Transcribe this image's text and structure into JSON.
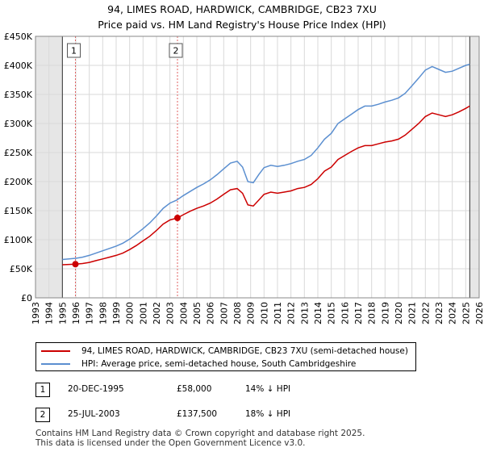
{
  "title_line1": "94, LIMES ROAD, HARDWICK, CAMBRIDGE, CB23 7XU",
  "title_line2": "Price paid vs. HM Land Registry's House Price Index (HPI)",
  "chart_data": {
    "type": "line",
    "xlim": [
      1993,
      2026
    ],
    "ylim": [
      0,
      450000
    ],
    "x_ticks": [
      "1993",
      "1994",
      "1995",
      "1996",
      "1997",
      "1998",
      "1999",
      "2000",
      "2001",
      "2002",
      "2003",
      "2004",
      "2005",
      "2006",
      "2007",
      "2008",
      "2009",
      "2010",
      "2011",
      "2012",
      "2013",
      "2014",
      "2015",
      "2016",
      "2017",
      "2018",
      "2019",
      "2020",
      "2021",
      "2022",
      "2023",
      "2024",
      "2025",
      "2026"
    ],
    "y_ticks": [
      {
        "value": 0,
        "label": "£0"
      },
      {
        "value": 50000,
        "label": "£50K"
      },
      {
        "value": 100000,
        "label": "£100K"
      },
      {
        "value": 150000,
        "label": "£150K"
      },
      {
        "value": 200000,
        "label": "£200K"
      },
      {
        "value": 250000,
        "label": "£250K"
      },
      {
        "value": 300000,
        "label": "£300K"
      },
      {
        "value": 350000,
        "label": "£350K"
      },
      {
        "value": 400000,
        "label": "£400K"
      },
      {
        "value": 450000,
        "label": "£450K"
      }
    ],
    "data_range": [
      1995,
      2025.3
    ],
    "series": [
      {
        "name": "94, LIMES ROAD, HARDWICK, CAMBRIDGE, CB23 7XU (semi-detached house)",
        "color": "#cc0000",
        "x": [
          1995.0,
          1995.5,
          1995.97,
          1996.5,
          1997.0,
          1997.5,
          1998.0,
          1998.5,
          1999.0,
          1999.5,
          2000.0,
          2000.5,
          2001.0,
          2001.5,
          2002.0,
          2002.5,
          2003.0,
          2003.56,
          2004.0,
          2004.5,
          2005.0,
          2005.5,
          2006.0,
          2006.5,
          2007.0,
          2007.5,
          2008.0,
          2008.4,
          2008.8,
          2009.2,
          2009.6,
          2010.0,
          2010.5,
          2011.0,
          2011.5,
          2012.0,
          2012.5,
          2013.0,
          2013.5,
          2014.0,
          2014.5,
          2015.0,
          2015.5,
          2016.0,
          2016.5,
          2017.0,
          2017.5,
          2018.0,
          2018.5,
          2019.0,
          2019.5,
          2020.0,
          2020.5,
          2021.0,
          2021.5,
          2022.0,
          2022.5,
          2023.0,
          2023.5,
          2024.0,
          2024.5,
          2025.0,
          2025.3
        ],
        "values": [
          57000,
          57500,
          58000,
          59000,
          61000,
          64000,
          67000,
          70000,
          73000,
          77000,
          83000,
          90000,
          98000,
          106000,
          116000,
          127000,
          134000,
          137500,
          143000,
          149000,
          154000,
          158000,
          163000,
          170000,
          178000,
          186000,
          188000,
          180000,
          160000,
          158000,
          168000,
          178000,
          182000,
          180000,
          182000,
          184000,
          188000,
          190000,
          195000,
          205000,
          218000,
          225000,
          238000,
          245000,
          252000,
          258000,
          262000,
          262000,
          265000,
          268000,
          270000,
          273000,
          280000,
          290000,
          300000,
          312000,
          318000,
          315000,
          312000,
          315000,
          320000,
          326000,
          330000
        ]
      },
      {
        "name": "HPI: Average price, semi-detached house, South Cambridgeshire",
        "color": "#5b8fd0",
        "x": [
          1995.0,
          1995.5,
          1996.0,
          1996.5,
          1997.0,
          1997.5,
          1998.0,
          1998.5,
          1999.0,
          1999.5,
          2000.0,
          2000.5,
          2001.0,
          2001.5,
          2002.0,
          2002.5,
          2003.0,
          2003.5,
          2004.0,
          2004.5,
          2005.0,
          2005.5,
          2006.0,
          2006.5,
          2007.0,
          2007.5,
          2008.0,
          2008.4,
          2008.8,
          2009.2,
          2009.6,
          2010.0,
          2010.5,
          2011.0,
          2011.5,
          2012.0,
          2012.5,
          2013.0,
          2013.5,
          2014.0,
          2014.5,
          2015.0,
          2015.5,
          2016.0,
          2016.5,
          2017.0,
          2017.5,
          2018.0,
          2018.5,
          2019.0,
          2019.5,
          2020.0,
          2020.5,
          2021.0,
          2021.5,
          2022.0,
          2022.5,
          2023.0,
          2023.5,
          2024.0,
          2024.5,
          2025.0,
          2025.3
        ],
        "values": [
          66000,
          67000,
          68000,
          70000,
          73000,
          77000,
          81000,
          85000,
          89000,
          94000,
          101000,
          110000,
          119000,
          129000,
          141000,
          154000,
          163000,
          168000,
          176000,
          183000,
          190000,
          196000,
          203000,
          212000,
          222000,
          232000,
          235000,
          225000,
          200000,
          198000,
          212000,
          224000,
          228000,
          226000,
          228000,
          231000,
          235000,
          238000,
          245000,
          258000,
          273000,
          283000,
          300000,
          308000,
          316000,
          324000,
          330000,
          330000,
          333000,
          337000,
          340000,
          344000,
          352000,
          365000,
          378000,
          392000,
          398000,
          393000,
          388000,
          390000,
          395000,
          400000,
          402000
        ]
      }
    ],
    "markers": [
      {
        "label": "1",
        "x": 1995.97,
        "y": 58000,
        "color": "#cc0000"
      },
      {
        "label": "2",
        "x": 2003.56,
        "y": 137500,
        "color": "#cc0000"
      }
    ]
  },
  "legend": {
    "items": [
      {
        "label": "94, LIMES ROAD, HARDWICK, CAMBRIDGE, CB23 7XU (semi-detached house)",
        "color": "#cc0000"
      },
      {
        "label": "HPI: Average price, semi-detached house, South Cambridgeshire",
        "color": "#5b8fd0"
      }
    ]
  },
  "transactions": [
    {
      "num": "1",
      "date": "20-DEC-1995",
      "price": "£58,000",
      "hpi": "14% ↓ HPI"
    },
    {
      "num": "2",
      "date": "25-JUL-2003",
      "price": "£137,500",
      "hpi": "18% ↓ HPI"
    }
  ],
  "footer": {
    "line1": "Contains HM Land Registry data © Crown copyright and database right 2025.",
    "line2": "This data is licensed under the Open Government Licence v3.0."
  }
}
